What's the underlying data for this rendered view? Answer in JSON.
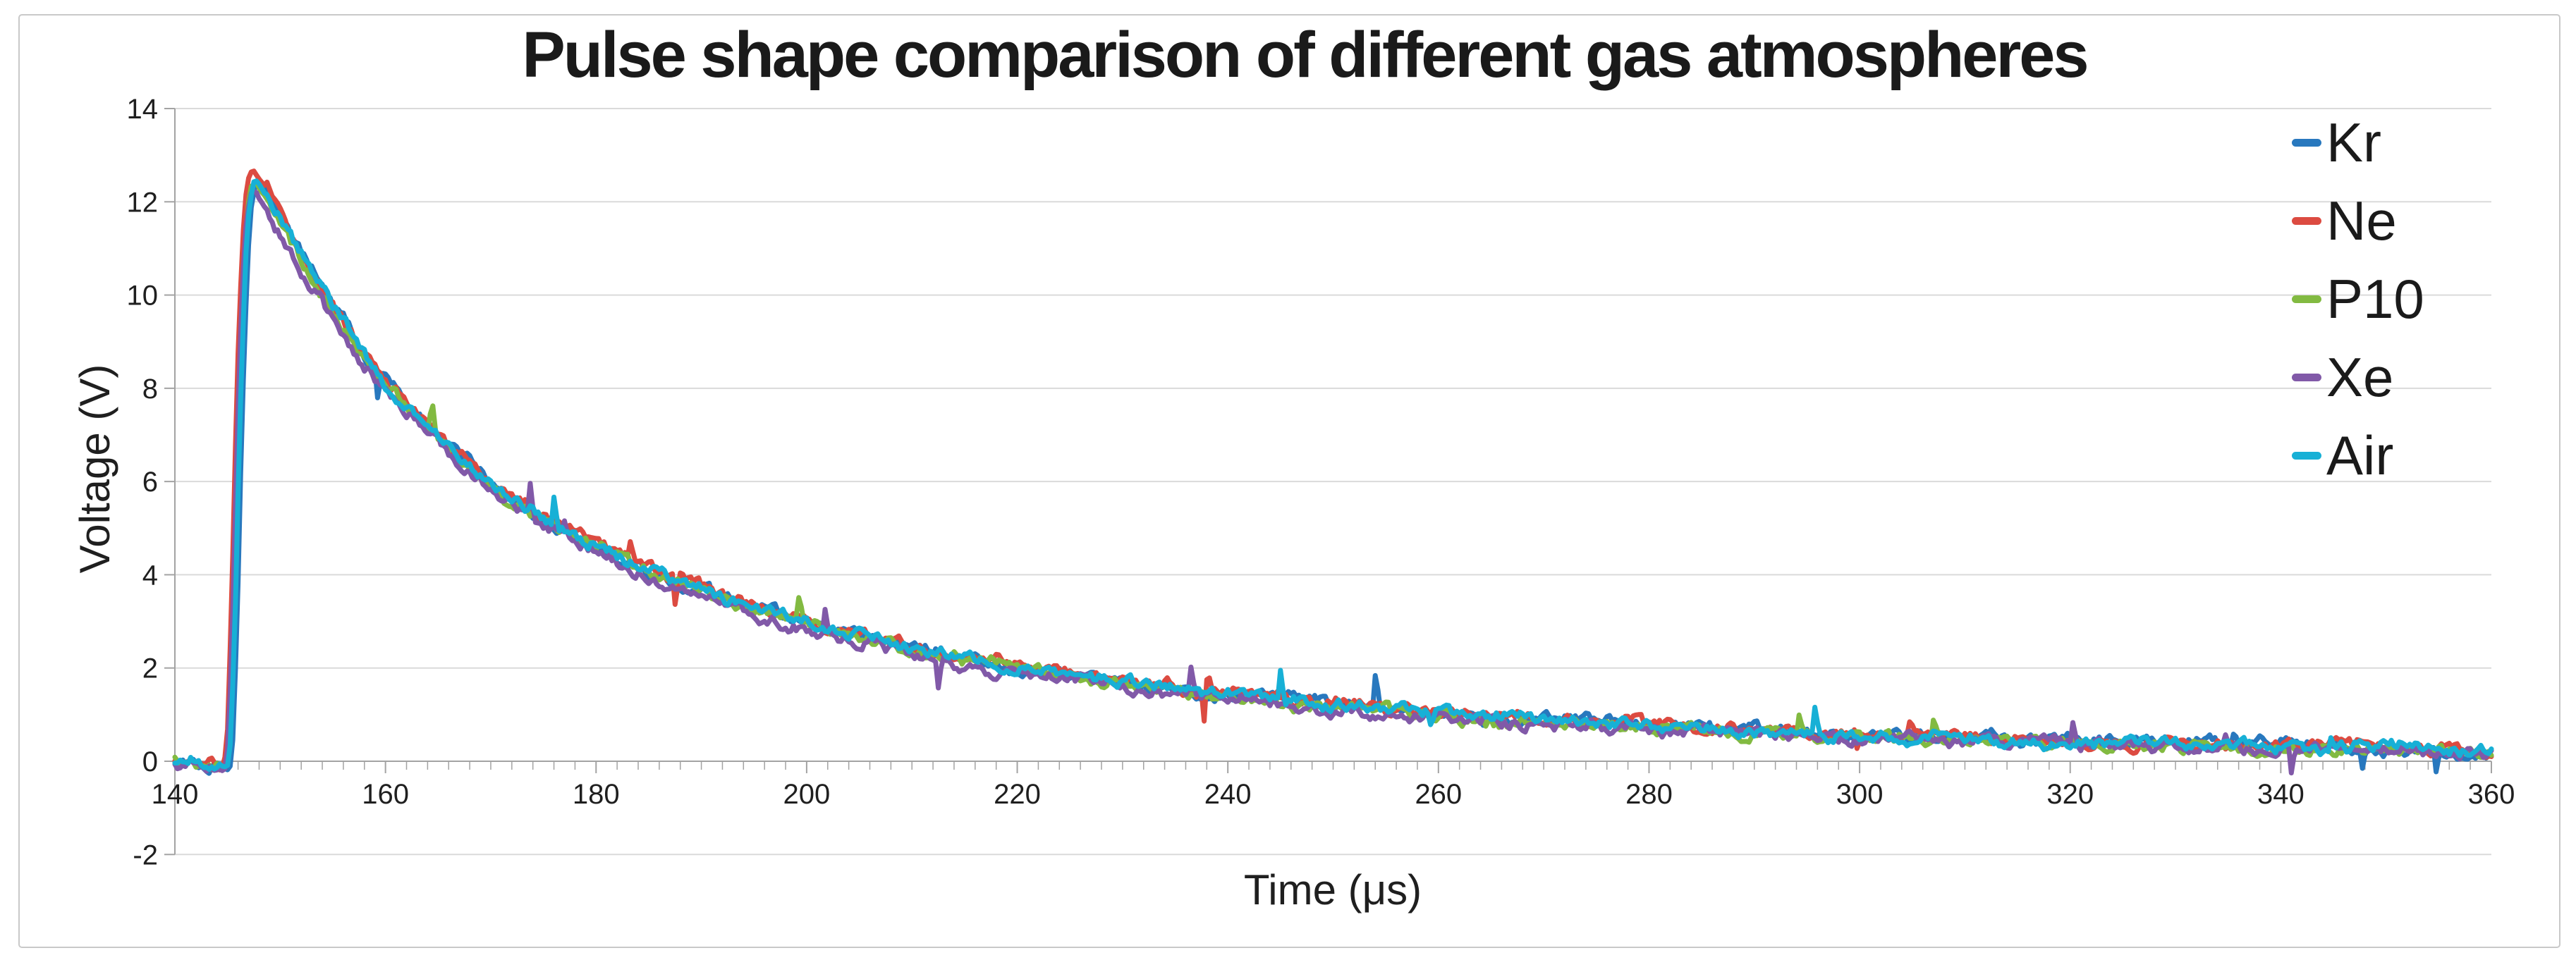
{
  "colors": {
    "grid": "#dadada",
    "axis": "#a3a3a3",
    "text": "#1f1f1f",
    "card_border": "#c9c9c9",
    "background": "#ffffff"
  },
  "chart_data": {
    "type": "line",
    "title": "Pulse shape comparison of different gas atmospheres",
    "xlabel": "Time (μs)",
    "ylabel": "Voltage (V)",
    "xlim": [
      140,
      360
    ],
    "ylim": [
      -2,
      14
    ],
    "x_ticks": [
      140,
      160,
      180,
      200,
      220,
      240,
      260,
      280,
      300,
      320,
      340,
      360
    ],
    "y_ticks": [
      -2,
      0,
      2,
      4,
      6,
      8,
      10,
      12,
      14
    ],
    "x_minor_tick_step": 2,
    "grid": "horizontal-only",
    "legend_position": "top-right",
    "peak_voltage": 12.45,
    "peak_time": 147.6,
    "series": [
      {
        "name": "Kr",
        "color": "#2878be",
        "time_shift": -0.25,
        "scale": 1.0,
        "offset": 0.0,
        "seed": 101
      },
      {
        "name": "Ne",
        "color": "#dc4b41",
        "time_shift": 0.3,
        "scale": 1.01,
        "offset": 0.05,
        "seed": 202
      },
      {
        "name": "P10",
        "color": "#82ba41",
        "time_shift": 0.1,
        "scale": 0.996,
        "offset": -0.03,
        "seed": 303
      },
      {
        "name": "Xe",
        "color": "#8159a8",
        "time_shift": 0.18,
        "scale": 0.985,
        "offset": -0.07,
        "seed": 404
      },
      {
        "name": "Air",
        "color": "#17b0d6",
        "time_shift": -0.05,
        "scale": 1.0,
        "offset": 0.0,
        "seed": 505
      }
    ],
    "pulse_keypoints": [
      [
        140,
        0.03
      ],
      [
        140.8,
        -0.04
      ],
      [
        141.6,
        0.06
      ],
      [
        142.4,
        -0.05
      ],
      [
        143.2,
        -0.1
      ],
      [
        144,
        -0.06
      ],
      [
        144.6,
        -0.16
      ],
      [
        145,
        -0.1
      ],
      [
        145.3,
        0.6
      ],
      [
        145.7,
        3.4
      ],
      [
        146,
        6.2
      ],
      [
        146.3,
        8.6
      ],
      [
        146.7,
        10.9
      ],
      [
        147,
        11.9
      ],
      [
        147.4,
        12.4
      ],
      [
        147.8,
        12.45
      ],
      [
        148.4,
        12.25
      ],
      [
        149,
        12.05
      ],
      [
        150,
        11.6
      ],
      [
        151,
        11.2
      ],
      [
        152,
        10.85
      ],
      [
        153,
        10.45
      ],
      [
        154,
        10.1
      ],
      [
        155,
        9.7
      ],
      [
        156,
        9.35
      ],
      [
        157,
        9.0
      ],
      [
        158,
        8.65
      ],
      [
        159,
        8.35
      ],
      [
        160,
        8.1
      ],
      [
        161,
        7.85
      ],
      [
        162,
        7.6
      ],
      [
        163,
        7.4
      ],
      [
        164,
        7.15
      ],
      [
        165,
        6.95
      ],
      [
        166,
        6.75
      ],
      [
        167,
        6.55
      ],
      [
        168,
        6.35
      ],
      [
        169,
        6.15
      ],
      [
        170,
        5.95
      ],
      [
        171,
        5.8
      ],
      [
        172,
        5.65
      ],
      [
        173,
        5.5
      ],
      [
        174,
        5.35
      ],
      [
        175,
        5.2
      ],
      [
        176,
        5.1
      ],
      [
        177,
        4.95
      ],
      [
        178,
        4.85
      ],
      [
        179,
        4.7
      ],
      [
        180,
        4.6
      ],
      [
        181,
        4.5
      ],
      [
        182,
        4.4
      ],
      [
        183,
        4.3
      ],
      [
        184,
        4.2
      ],
      [
        185,
        4.1
      ],
      [
        186,
        4.0
      ],
      [
        187,
        3.92
      ],
      [
        188,
        3.84
      ],
      [
        189,
        3.76
      ],
      [
        190,
        3.68
      ],
      [
        191,
        3.6
      ],
      [
        192,
        3.52
      ],
      [
        193,
        3.45
      ],
      [
        194,
        3.38
      ],
      [
        195,
        3.3
      ],
      [
        196,
        3.24
      ],
      [
        197,
        3.17
      ],
      [
        198,
        3.1
      ],
      [
        199,
        3.05
      ],
      [
        200,
        3.0
      ],
      [
        202,
        2.86
      ],
      [
        204,
        2.74
      ],
      [
        206,
        2.62
      ],
      [
        208,
        2.5
      ],
      [
        210,
        2.4
      ],
      [
        212,
        2.3
      ],
      [
        214,
        2.22
      ],
      [
        216,
        2.14
      ],
      [
        218,
        2.07
      ],
      [
        220,
        2.0
      ],
      [
        222,
        1.93
      ],
      [
        224,
        1.86
      ],
      [
        226,
        1.8
      ],
      [
        228,
        1.74
      ],
      [
        230,
        1.68
      ],
      [
        232,
        1.62
      ],
      [
        234,
        1.57
      ],
      [
        236,
        1.52
      ],
      [
        238,
        1.47
      ],
      [
        240,
        1.43
      ],
      [
        243,
        1.36
      ],
      [
        246,
        1.29
      ],
      [
        249,
        1.23
      ],
      [
        252,
        1.17
      ],
      [
        255,
        1.12
      ],
      [
        258,
        1.07
      ],
      [
        261,
        1.02
      ],
      [
        264,
        0.97
      ],
      [
        267,
        0.93
      ],
      [
        270,
        0.89
      ],
      [
        273,
        0.85
      ],
      [
        276,
        0.81
      ],
      [
        279,
        0.78
      ],
      [
        282,
        0.74
      ],
      [
        285,
        0.71
      ],
      [
        288,
        0.68
      ],
      [
        291,
        0.65
      ],
      [
        294,
        0.62
      ],
      [
        297,
        0.59
      ],
      [
        300,
        0.57
      ],
      [
        304,
        0.53
      ],
      [
        308,
        0.5
      ],
      [
        312,
        0.47
      ],
      [
        316,
        0.44
      ],
      [
        320,
        0.41
      ],
      [
        324,
        0.39
      ],
      [
        328,
        0.37
      ],
      [
        332,
        0.35
      ],
      [
        336,
        0.33
      ],
      [
        340,
        0.31
      ],
      [
        344,
        0.3
      ],
      [
        348,
        0.28
      ],
      [
        352,
        0.27
      ],
      [
        356,
        0.26
      ],
      [
        360,
        0.25
      ]
    ],
    "noise": {
      "amplitude": 0.12,
      "spike_probability": 0.006,
      "spike_magnitude": [
        0.25,
        0.65
      ]
    },
    "sample_step": 0.25,
    "line_width": 7
  }
}
